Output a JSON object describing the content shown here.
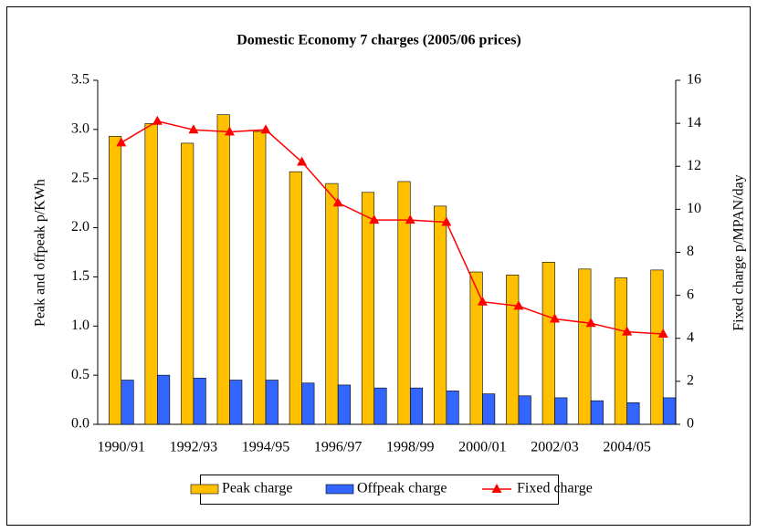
{
  "chart_data": {
    "type": "bar",
    "title": "Domestic Economy 7 charges (2005/06 prices)",
    "y_label": "Peak and offpeak p/KWh",
    "y2_label": "Fixed charge p/MPAN/day",
    "categories": [
      "1990/91",
      null,
      "1992/93",
      null,
      "1994/95",
      null,
      "1996/97",
      null,
      "1998/99",
      null,
      "2000/01",
      null,
      "2002/03",
      null,
      "2004/05",
      null
    ],
    "series": [
      {
        "name": "Peak charge",
        "type": "bar",
        "color": "#ffc000",
        "values": [
          2.93,
          3.06,
          2.86,
          3.15,
          2.98,
          2.57,
          2.45,
          2.36,
          2.47,
          2.22,
          1.55,
          1.52,
          1.65,
          1.58,
          1.49,
          1.57
        ]
      },
      {
        "name": "Offpeak charge",
        "type": "bar",
        "color": "#3366ff",
        "values": [
          0.45,
          0.5,
          0.47,
          0.45,
          0.45,
          0.42,
          0.4,
          0.37,
          0.37,
          0.34,
          0.31,
          0.29,
          0.27,
          0.24,
          0.22,
          0.27
        ]
      },
      {
        "name": "Fixed charge",
        "type": "line",
        "axis": "y2",
        "color": "#ff0000",
        "values": [
          13.1,
          14.1,
          13.7,
          13.6,
          13.7,
          12.2,
          10.3,
          9.5,
          9.5,
          9.4,
          5.7,
          5.5,
          4.9,
          4.7,
          4.3,
          4.2
        ]
      }
    ],
    "ylim": [
      0,
      3.5
    ],
    "yticks": [
      {
        "value": 0,
        "label": "0.0"
      },
      0.5,
      {
        "value": 1,
        "label": "1.0"
      },
      1.5,
      {
        "value": 2,
        "label": "2.0"
      },
      2.5,
      {
        "value": 3,
        "label": "3.0"
      },
      3.5
    ],
    "y2lim": [
      0,
      16
    ],
    "y2ticks": [
      0,
      2,
      4,
      6,
      8,
      10,
      12,
      14,
      16
    ],
    "grid": false,
    "legend": "bottom"
  }
}
